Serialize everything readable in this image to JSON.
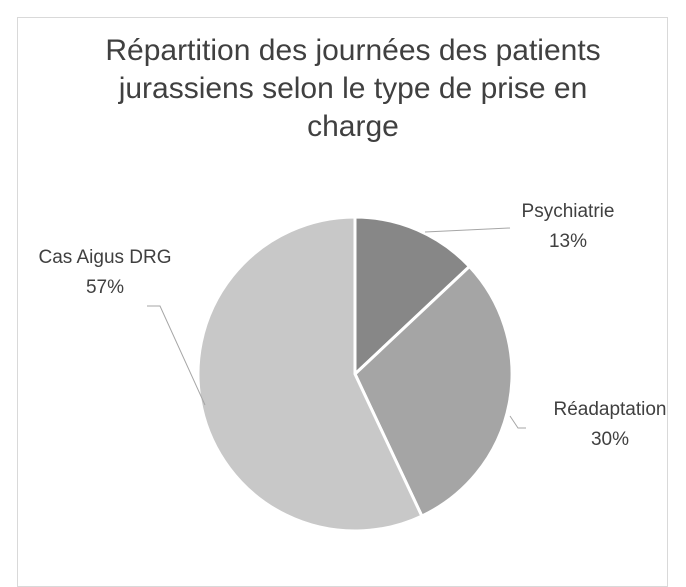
{
  "chart_data": {
    "type": "pie",
    "title": "Répartition des journées des patients jurassiens selon le type de prise en charge",
    "categories": [
      "Psychiatrie",
      "Réadaptation",
      "Cas Aigus DRG"
    ],
    "values": [
      13,
      30,
      57
    ],
    "value_labels": [
      "13%",
      "30%",
      "57%"
    ],
    "colors": [
      "#878787",
      "#a5a5a5",
      "#c8c8c8"
    ]
  }
}
